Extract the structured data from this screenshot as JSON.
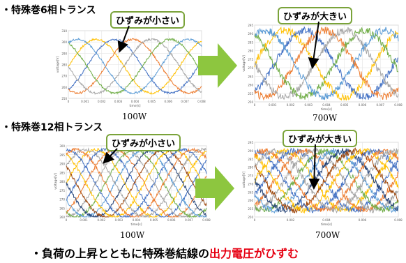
{
  "sections": [
    {
      "title": "・特殊巻6相トランス"
    },
    {
      "title": "・特殊巻12相トランス"
    }
  ],
  "callouts": {
    "small": "ひずみが小さい",
    "large": "ひずみが大きい"
  },
  "power_labels": [
    "100W",
    "700W",
    "100W",
    "700W"
  ],
  "conclusion": {
    "prefix": "・負荷の上昇とともに特殊巻結線の",
    "highlight": "出力電圧がひずむ"
  },
  "colors": {
    "arrow": "#8dc63f",
    "callout_border": "#7aa33a",
    "highlight": "#e60012",
    "series": [
      "#ffc000",
      "#4472c4",
      "#ed7d31",
      "#a5a5a5",
      "#70ad47",
      "#5b9bd5",
      "#264478",
      "#9e480e"
    ]
  },
  "chart_data": [
    {
      "type": "line",
      "id": "6ph-100W",
      "xlabel": "time[s]",
      "ylabel": "voltage[V]",
      "xlim": [
        0,
        0.008
      ],
      "ylim": [
        250,
        310
      ],
      "x_ticks": [
        "0",
        "0.001",
        "0.002",
        "0.003",
        "0.004",
        "0.005",
        "0.006",
        "0.007",
        "0.008"
      ],
      "y_ticks": [
        "250",
        "260",
        "270",
        "280",
        "290",
        "300",
        "310"
      ],
      "phases": 6,
      "peak": 300,
      "trough": 257,
      "noise": 0.9
    },
    {
      "type": "line",
      "id": "6ph-700W",
      "xlabel": "time[s]",
      "ylabel": "voltage[V]",
      "xlim": [
        0,
        0.008
      ],
      "ylim": [
        250,
        295
      ],
      "x_ticks": [
        "0",
        "0.001",
        "0.002",
        "0.003",
        "0.004",
        "0.005",
        "0.006",
        "0.007",
        "0.008"
      ],
      "y_ticks": [
        "250",
        "255",
        "260",
        "265",
        "270",
        "275",
        "280",
        "285",
        "290",
        "295"
      ],
      "phases": 6,
      "peak": 290,
      "trough": 255,
      "noise": 2.2
    },
    {
      "type": "line",
      "id": "12ph-100W",
      "xlabel": "time[s]",
      "ylabel": "voltage[V]",
      "xlim": [
        0,
        0.008
      ],
      "ylim": [
        260,
        300
      ],
      "x_ticks": [
        "0",
        "0.001",
        "0.002",
        "0.003",
        "0.004",
        "0.005",
        "0.006",
        "0.007",
        "0.008"
      ],
      "y_ticks": [
        "260",
        "265",
        "270",
        "275",
        "280",
        "285",
        "290",
        "295",
        "300"
      ],
      "phases": 12,
      "peak": 296,
      "trough": 262,
      "noise": 0.8
    },
    {
      "type": "line",
      "id": "12ph-700W",
      "xlabel": "time[s]",
      "ylabel": "voltage[V]",
      "xlim": [
        0,
        0.008
      ],
      "ylim": [
        250,
        295
      ],
      "x_ticks": [
        "0",
        "0.002",
        "0.004",
        "0.006",
        "0.008"
      ],
      "y_ticks": [
        "250",
        "255",
        "260",
        "265",
        "270",
        "275",
        "280",
        "285",
        "290",
        "295"
      ],
      "phases": 12,
      "peak": 288,
      "trough": 256,
      "noise": 1.8
    }
  ]
}
